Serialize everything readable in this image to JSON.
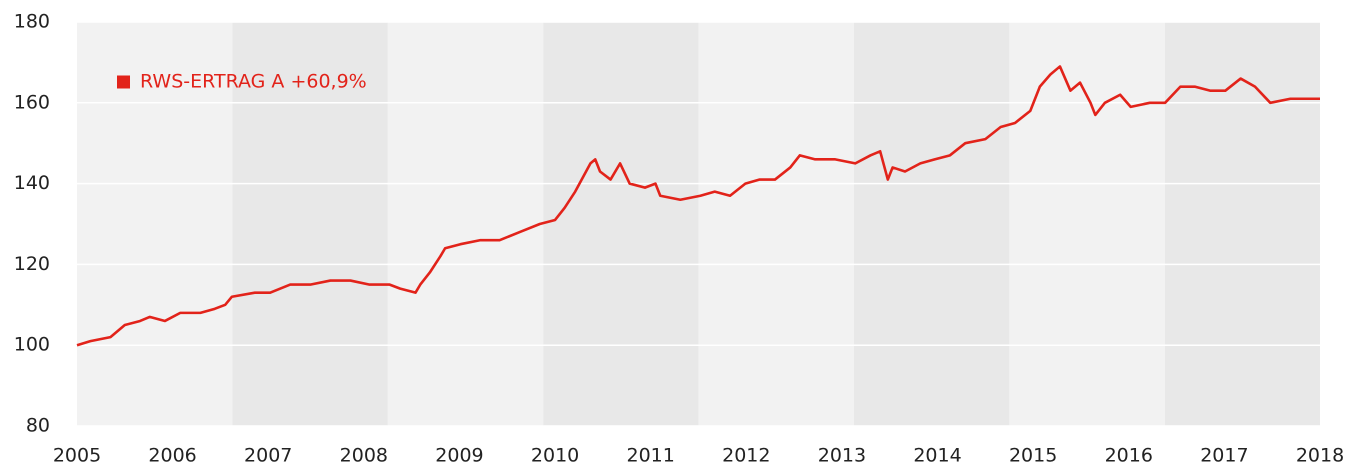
{
  "chart_data": {
    "type": "line",
    "x": [
      2005.0,
      2005.14,
      2005.35,
      2005.5,
      2005.66,
      2005.76,
      2005.92,
      2006.08,
      2006.29,
      2006.44,
      2006.55,
      2006.62,
      2006.86,
      2007.02,
      2007.23,
      2007.44,
      2007.65,
      2007.86,
      2008.06,
      2008.27,
      2008.38,
      2008.54,
      2008.59,
      2008.69,
      2008.8,
      2008.85,
      2009.01,
      2009.22,
      2009.42,
      2009.63,
      2009.84,
      2010.0,
      2010.1,
      2010.21,
      2010.37,
      2010.42,
      2010.47,
      2010.58,
      2010.68,
      2010.78,
      2010.94,
      2011.05,
      2011.1,
      2011.31,
      2011.52,
      2011.67,
      2011.83,
      2011.99,
      2012.14,
      2012.3,
      2012.46,
      2012.56,
      2012.72,
      2012.93,
      2013.14,
      2013.3,
      2013.4,
      2013.48,
      2013.53,
      2013.66,
      2013.82,
      2013.97,
      2014.13,
      2014.29,
      2014.5,
      2014.66,
      2014.81,
      2014.97,
      2015.07,
      2015.18,
      2015.28,
      2015.39,
      2015.49,
      2015.6,
      2015.65,
      2015.75,
      2015.91,
      2016.02,
      2016.22,
      2016.38,
      2016.54,
      2016.69,
      2016.85,
      2017.01,
      2017.17,
      2017.32,
      2017.48,
      2017.69,
      2017.85,
      2018.0
    ],
    "series": [
      {
        "name": "RWS-ERTRAG A +60,9%",
        "color": "#e2231a",
        "values": [
          100,
          101,
          102,
          105,
          106,
          107,
          106,
          108,
          108,
          109,
          110,
          112,
          113,
          113,
          115,
          115,
          116,
          116,
          115,
          115,
          114,
          113,
          115,
          118,
          122,
          124,
          125,
          126,
          126,
          128,
          130,
          131,
          134,
          138,
          145,
          146,
          143,
          141,
          145,
          140,
          139,
          140,
          137,
          136,
          137,
          138,
          137,
          140,
          141,
          141,
          144,
          147,
          146,
          146,
          145,
          147,
          148,
          141,
          144,
          143,
          145,
          146,
          147,
          150,
          151,
          154,
          155,
          158,
          164,
          167,
          169,
          163,
          165,
          160,
          157,
          160,
          162,
          159,
          160,
          160,
          164,
          164,
          163,
          163,
          166,
          164,
          160,
          161,
          161,
          161
        ]
      }
    ],
    "xlim": [
      2005,
      2018
    ],
    "xticks": [
      2005,
      2006,
      2007,
      2008,
      2009,
      2010,
      2011,
      2012,
      2013,
      2014,
      2015,
      2016,
      2017,
      2018
    ],
    "ylim": [
      80,
      180
    ],
    "yticks": [
      80,
      100,
      120,
      140,
      160,
      180
    ],
    "grid": true,
    "legend": "upper left"
  }
}
